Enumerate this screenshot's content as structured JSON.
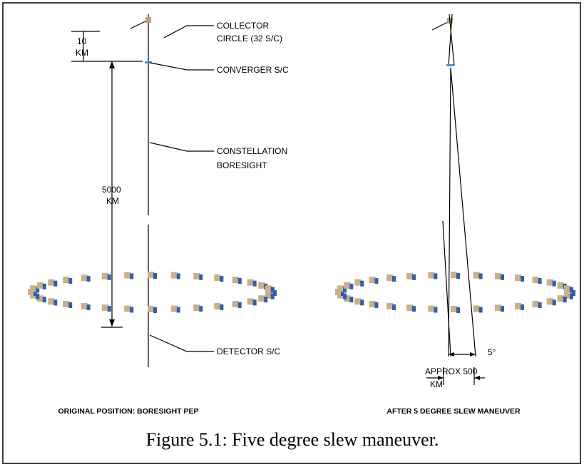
{
  "left_panel": {
    "dimension_small": [
      "10",
      "KM"
    ],
    "dimension_large": [
      "5000",
      "KM"
    ],
    "callouts": [
      {
        "lines": [
          "COLLECTOR",
          "CIRCLE (32 S/C)"
        ]
      },
      {
        "lines": [
          "CONVERGER S/C"
        ]
      },
      {
        "lines": [
          "CONSTELLATION",
          "BORESIGHT"
        ]
      },
      {
        "lines": [
          "DETECTOR S/C"
        ]
      }
    ],
    "label": "ORIGINAL POSITION: BORESIGHT PEP"
  },
  "right_panel": {
    "angle": "5°",
    "offset": [
      "APPROX 500",
      "KM"
    ],
    "label": "AFTER 5 DEGREE SLEW MANEUVER"
  },
  "caption": "Figure 5.1: Five degree slew maneuver."
}
